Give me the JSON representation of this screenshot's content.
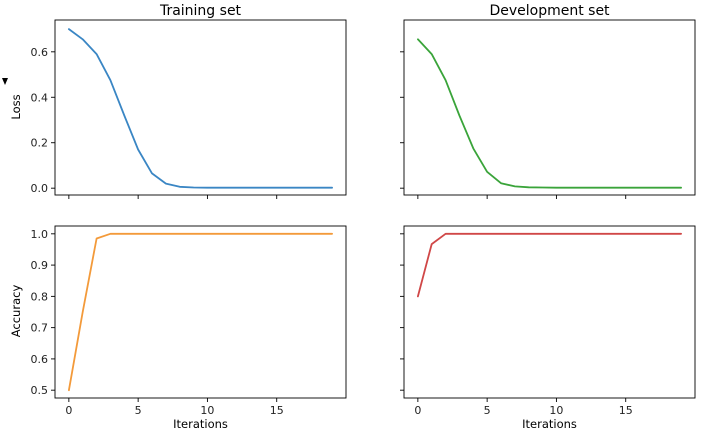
{
  "chart_data": [
    {
      "type": "line",
      "title": "Training set",
      "xlabel": "",
      "ylabel": "Loss",
      "xlim": [
        -1,
        20
      ],
      "ylim": [
        -0.03,
        0.74
      ],
      "xticks": [
        0,
        5,
        10,
        15
      ],
      "yticks": [
        0.0,
        0.2,
        0.4,
        0.6
      ],
      "ytick_labels": [
        "0.0",
        "0.2",
        "0.4",
        "0.6"
      ],
      "show_xtick_labels": false,
      "show_ytick_labels": true,
      "color": "#3a86c4",
      "x": [
        0,
        1,
        2,
        3,
        4,
        5,
        6,
        7,
        8,
        9,
        10,
        11,
        12,
        13,
        14,
        15,
        16,
        17,
        18,
        19
      ],
      "y": [
        0.7,
        0.655,
        0.59,
        0.475,
        0.32,
        0.17,
        0.065,
        0.02,
        0.006,
        0.003,
        0.002,
        0.002,
        0.002,
        0.002,
        0.002,
        0.002,
        0.002,
        0.002,
        0.002,
        0.002
      ]
    },
    {
      "type": "line",
      "title": "Development set",
      "xlabel": "",
      "ylabel": "",
      "xlim": [
        -1,
        20
      ],
      "ylim": [
        -0.03,
        0.74
      ],
      "xticks": [
        0,
        5,
        10,
        15
      ],
      "yticks": [
        0.0,
        0.2,
        0.4,
        0.6
      ],
      "ytick_labels": [
        "0.0",
        "0.2",
        "0.4",
        "0.6"
      ],
      "show_xtick_labels": false,
      "show_ytick_labels": false,
      "color": "#3aa43a",
      "x": [
        0,
        1,
        2,
        3,
        4,
        5,
        6,
        7,
        8,
        9,
        10,
        11,
        12,
        13,
        14,
        15,
        16,
        17,
        18,
        19
      ],
      "y": [
        0.655,
        0.59,
        0.475,
        0.32,
        0.175,
        0.072,
        0.022,
        0.008,
        0.004,
        0.003,
        0.002,
        0.002,
        0.002,
        0.002,
        0.002,
        0.002,
        0.002,
        0.002,
        0.002,
        0.002
      ]
    },
    {
      "type": "line",
      "title": "",
      "xlabel": "Iterations",
      "ylabel": "Accuracy",
      "xlim": [
        -1,
        20
      ],
      "ylim": [
        0.475,
        1.025
      ],
      "xticks": [
        0,
        5,
        10,
        15
      ],
      "xtick_labels": [
        "0",
        "5",
        "10",
        "15"
      ],
      "yticks": [
        0.5,
        0.6,
        0.7,
        0.8,
        0.9,
        1.0
      ],
      "ytick_labels": [
        "0.5",
        "0.6",
        "0.7",
        "0.8",
        "0.9",
        "1.0"
      ],
      "show_xtick_labels": true,
      "show_ytick_labels": true,
      "color": "#f39a3a",
      "x": [
        0,
        1,
        2,
        3,
        4,
        5,
        6,
        7,
        8,
        9,
        10,
        11,
        12,
        13,
        14,
        15,
        16,
        17,
        18,
        19
      ],
      "y": [
        0.5,
        0.75,
        0.985,
        1.0,
        1.0,
        1.0,
        1.0,
        1.0,
        1.0,
        1.0,
        1.0,
        1.0,
        1.0,
        1.0,
        1.0,
        1.0,
        1.0,
        1.0,
        1.0,
        1.0
      ]
    },
    {
      "type": "line",
      "title": "",
      "xlabel": "Iterations",
      "ylabel": "",
      "xlim": [
        -1,
        20
      ],
      "ylim": [
        0.475,
        1.025
      ],
      "xticks": [
        0,
        5,
        10,
        15
      ],
      "xtick_labels": [
        "0",
        "5",
        "10",
        "15"
      ],
      "yticks": [
        0.5,
        0.6,
        0.7,
        0.8,
        0.9,
        1.0
      ],
      "ytick_labels": [
        "0.5",
        "0.6",
        "0.7",
        "0.8",
        "0.9",
        "1.0"
      ],
      "show_xtick_labels": true,
      "show_ytick_labels": false,
      "color": "#d04747",
      "x": [
        0,
        1,
        2,
        3,
        4,
        5,
        6,
        7,
        8,
        9,
        10,
        11,
        12,
        13,
        14,
        15,
        16,
        17,
        18,
        19
      ],
      "y": [
        0.8,
        0.967,
        1.0,
        1.0,
        1.0,
        1.0,
        1.0,
        1.0,
        1.0,
        1.0,
        1.0,
        1.0,
        1.0,
        1.0,
        1.0,
        1.0,
        1.0,
        1.0,
        1.0,
        1.0
      ]
    }
  ]
}
